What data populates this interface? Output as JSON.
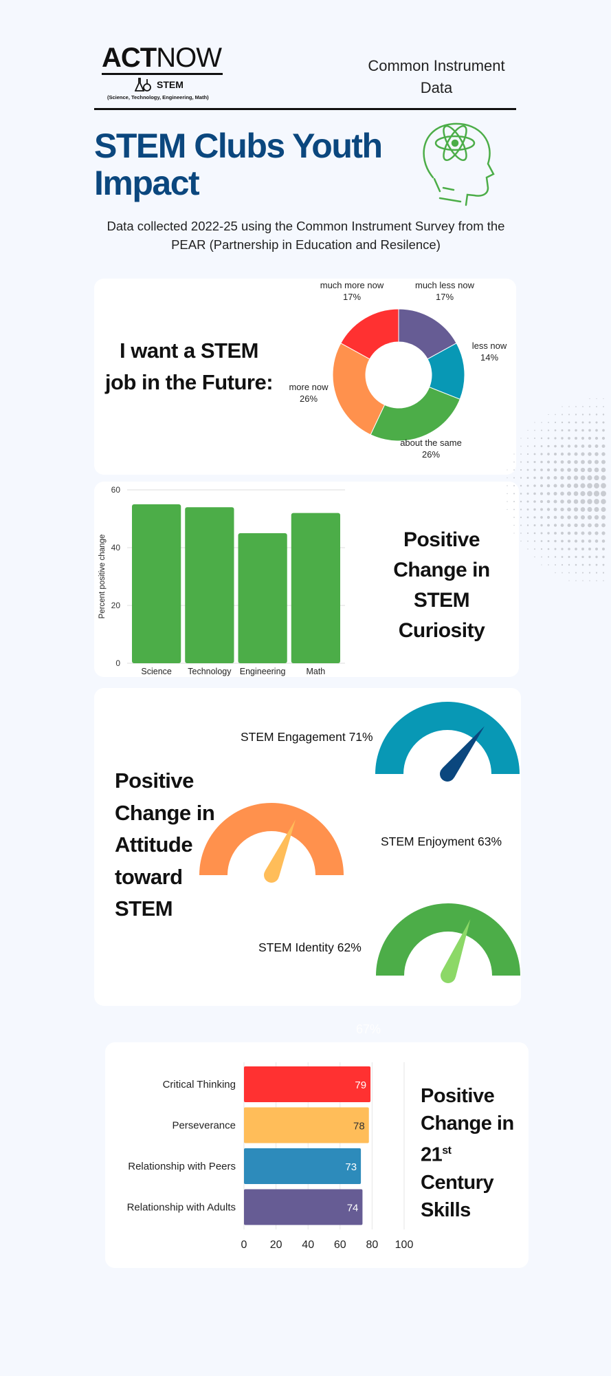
{
  "header": {
    "logo_act": "ACT",
    "logo_now": "NOW",
    "logo_stem": "STEM",
    "logo_sub": "(Science, Technology, Engineering, Math)",
    "right_title": "Common Instrument Data"
  },
  "title": "STEM Clubs Youth Impact",
  "subtitle": "Data collected 2022-25 using the Common Instrument Survey from the PEAR (Partnership in Education and Resilence)",
  "colors": {
    "navy": "#0b477e",
    "red": "#ff3131",
    "purple": "#665c94",
    "teal": "#0898b5",
    "green": "#4cad48",
    "orange": "#ff914d",
    "yellow": "#ffbd59",
    "blue": "#2d8bbb"
  },
  "donut": {
    "heading": "I want a STEM job in the Future:"
  },
  "curiosity": {
    "heading": "Positive Change in STEM Curiosity"
  },
  "attitude": {
    "heading": "Positive Change in Attitude toward STEM"
  },
  "skills": {
    "heading_a": "Positive Change in",
    "heading_num": "21",
    "heading_sup": "st",
    "heading_b": "Century Skills",
    "faint_label": "67%"
  },
  "chart_data": [
    {
      "type": "pie",
      "title": "I want a STEM job in the Future:",
      "categories": [
        "much less now",
        "less now",
        "about the same",
        "more now",
        "much more now"
      ],
      "values": [
        17,
        14,
        26,
        26,
        17
      ],
      "labels": [
        "17%",
        "14%",
        "26%",
        "26%",
        "17%"
      ],
      "colors": [
        "#665c94",
        "#0898b5",
        "#4cad48",
        "#ff914d",
        "#ff3131"
      ]
    },
    {
      "type": "bar",
      "title": "Positive Change in STEM Curiosity",
      "categories": [
        "Science",
        "Technology",
        "Engineering",
        "Math"
      ],
      "values": [
        55,
        54,
        45,
        52
      ],
      "ylabel": "Percent positive change",
      "ylim": [
        0,
        60
      ],
      "yticks": [
        "0",
        "20",
        "40",
        "60"
      ],
      "color": "#4cad48",
      "grid": true
    },
    {
      "type": "gauge",
      "title": "Positive Change in Attitude toward STEM",
      "categories": [
        "STEM Engagement",
        "STEM Enjoyment",
        "STEM Identity"
      ],
      "values": [
        71,
        63,
        62
      ],
      "labels": [
        "STEM Engagement 71%",
        "STEM Enjoyment 63%",
        "STEM Identity 62%"
      ],
      "range": [
        0,
        100
      ],
      "arc_colors": [
        "#0898b5",
        "#ff914d",
        "#4cad48"
      ],
      "needle_colors": [
        "#0b477e",
        "#ffbd59",
        "#8cd867"
      ]
    },
    {
      "type": "bar",
      "orientation": "horizontal",
      "title": "Positive Change in 21st Century Skills",
      "categories": [
        "Critical Thinking",
        "Perseverance",
        "Relationship with Peers",
        "Relationship with Adults"
      ],
      "values": [
        79,
        78,
        73,
        74
      ],
      "labels": [
        "79",
        "78",
        "73",
        "74"
      ],
      "xlim": [
        0,
        100
      ],
      "xticks": [
        "0",
        "20",
        "40",
        "60",
        "80",
        "100"
      ],
      "colors": [
        "#ff3131",
        "#ffbd59",
        "#2d8bbb",
        "#665c94"
      ],
      "label_colors": [
        "#ffffff",
        "#333333",
        "#ffffff",
        "#ffffff"
      ]
    }
  ]
}
